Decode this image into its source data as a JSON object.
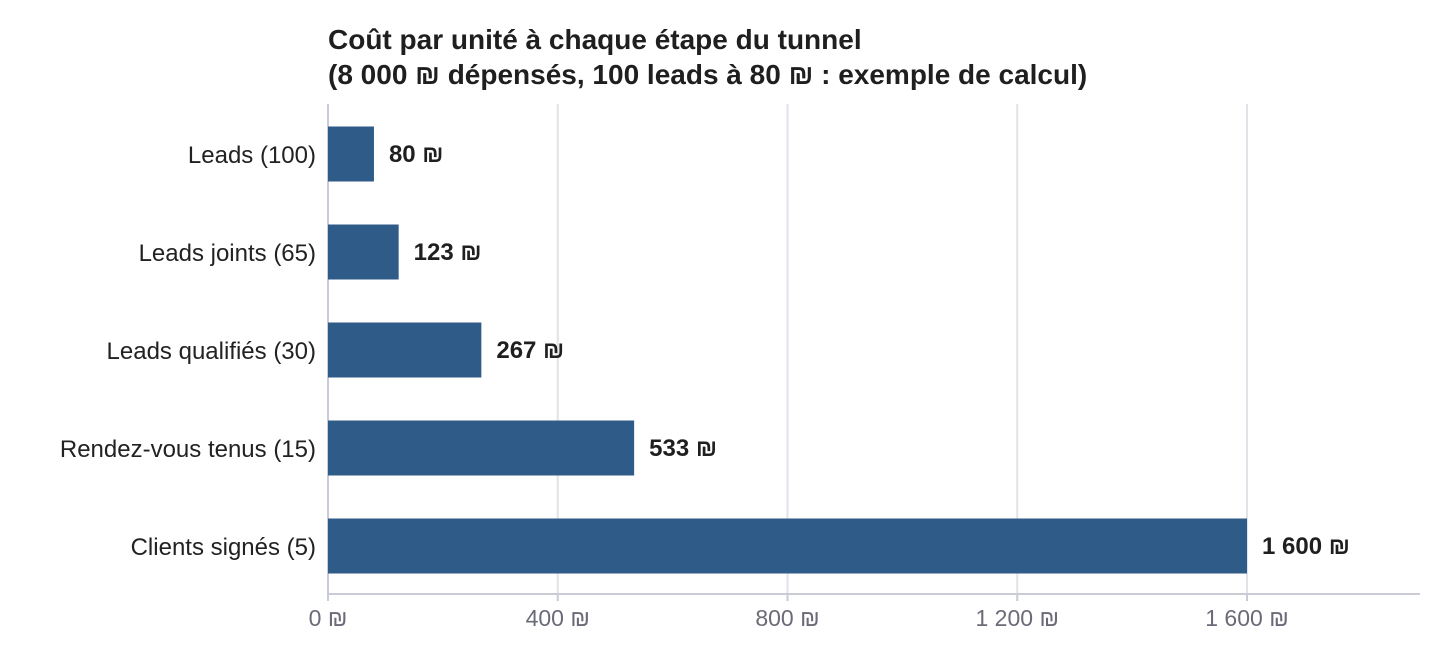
{
  "chart_data": {
    "type": "bar",
    "orientation": "horizontal",
    "title": "Coût par unité à chaque étape du tunnel",
    "subtitle": "(8 000 ₪ dépensés, 100 leads à 80 ₪ : exemple de calcul)",
    "categories": [
      "Leads (100)",
      "Leads joints (65)",
      "Leads qualifiés (30)",
      "Rendez-vous tenus (15)",
      "Clients signés (5)"
    ],
    "values": [
      80,
      123,
      267,
      533,
      1600
    ],
    "value_labels": [
      "80 ₪",
      "123 ₪",
      "267 ₪",
      "533 ₪",
      "1 600 ₪"
    ],
    "xlim": [
      0,
      1900
    ],
    "xticks": [
      0,
      400,
      800,
      1200,
      1600
    ],
    "xtick_labels": [
      "0 ₪",
      "400 ₪",
      "800 ₪",
      "1 200 ₪",
      "1 600 ₪"
    ],
    "grid": true,
    "legend": "none",
    "bar_color": "#2e5b87",
    "grid_color": "#e1e3e8",
    "axis_color": "#c9cbd6"
  }
}
